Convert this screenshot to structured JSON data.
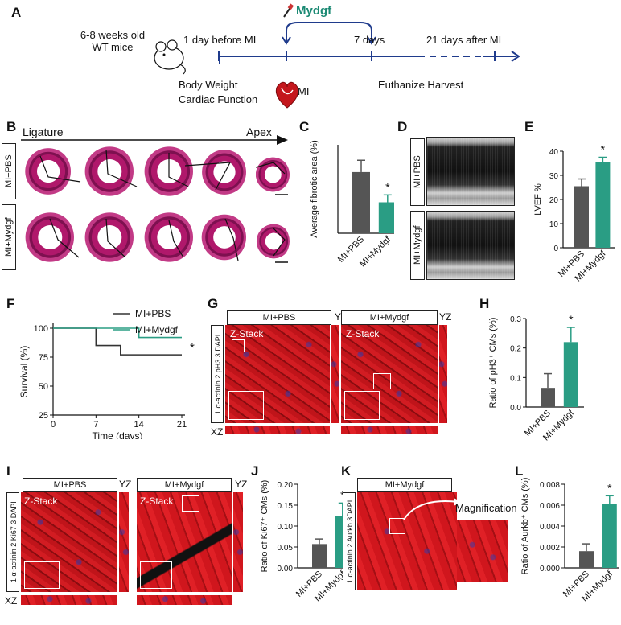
{
  "panels": {
    "A": {
      "letter": "A",
      "mice_line1": "6-8 weeks old",
      "mice_line2": "WT mice",
      "drug": "Mydgf",
      "t1": "1 day before MI",
      "t2": "7 days",
      "t3": "21 days after MI",
      "below1_line1": "Body Weight",
      "below1_line2": "Cardiac Function",
      "mi": "MI",
      "euth": "Euthanize Harvest"
    },
    "B": {
      "letter": "B",
      "ligature": "Ligature",
      "apex": "Apex",
      "row1": "MI+PBS",
      "row2": "MI+Mydgf"
    },
    "C": {
      "letter": "C",
      "ylabel": "Average fibrotic area (%)",
      "star": "*",
      "cat1": "MI+PBS",
      "cat2": "MI+Mydgf"
    },
    "D": {
      "letter": "D",
      "row1": "MI+PBS",
      "row2": "MI+Mydgf"
    },
    "E": {
      "letter": "E",
      "ylabel": "LVEF %",
      "star": "*",
      "ticks": [
        "0",
        "10",
        "20",
        "30",
        "40"
      ],
      "cat1": "MI+PBS",
      "cat2": "MI+Mydgf"
    },
    "F": {
      "letter": "F",
      "legend1": "MI+PBS",
      "legend2": "MI+Mydgf",
      "ylabel": "Survival (%)",
      "xlabel": "Time (days)",
      "yticks": [
        "25",
        "50",
        "75",
        "100"
      ],
      "xticks": [
        "0",
        "7",
        "14",
        "21"
      ],
      "star": "*"
    },
    "G": {
      "letter": "G",
      "title1": "MI+PBS",
      "title2": "MI+Mydgf",
      "yz": "YZ",
      "xz": "XZ",
      "zstack": "Z-Stack",
      "stain": "1 α-actinin 2 pH3 3 DAPI"
    },
    "H": {
      "letter": "H",
      "ylabel": "Ratio of pH3⁺ CMs (%)",
      "ticks": [
        "0.0",
        "0.1",
        "0.2",
        "0.3"
      ],
      "star": "*",
      "cat1": "MI+PBS",
      "cat2": "MI+Mydgf"
    },
    "I": {
      "letter": "I",
      "title1": "MI+PBS",
      "title2": "MI+Mydgf",
      "yz": "YZ",
      "xz": "XZ",
      "zstack": "Z-Stack",
      "stain": "1 α-actinin 2 Ki67 3 DAPI"
    },
    "J": {
      "letter": "J",
      "ylabel": "Ratio of Ki67⁺ CMs (%)",
      "ticks": [
        "0.00",
        "0.05",
        "0.10",
        "0.15",
        "0.20"
      ],
      "star": "*",
      "cat1": "MI+PBS",
      "cat2": "MI+Mydgf"
    },
    "K": {
      "letter": "K",
      "title": "MI+Mydgf",
      "magnification": "Magnification",
      "stain": "1 α-actinin 2 Aurkb 3DAPI"
    },
    "L": {
      "letter": "L",
      "ylabel": "Ratio of Aurkb⁺ CMs (%)",
      "ticks": [
        "0.000",
        "0.002",
        "0.004",
        "0.006",
        "0.008"
      ],
      "star": "*",
      "cat1": "MI+PBS",
      "cat2": "MI+Mydgf"
    }
  },
  "chart_data": [
    {
      "panel": "C",
      "type": "bar",
      "categories": [
        "MI+PBS",
        "MI+Mydgf"
      ],
      "values": [
        83,
        42
      ],
      "errors": [
        16,
        10
      ],
      "ylim": [
        0,
        120
      ],
      "ylabel": "Average fibrotic area (%)",
      "colors": [
        "#555555",
        "#2a9d84"
      ]
    },
    {
      "panel": "E",
      "type": "bar",
      "categories": [
        "MI+PBS",
        "MI+Mydgf"
      ],
      "values": [
        25.5,
        35.5
      ],
      "errors": [
        3,
        2
      ],
      "ylim": [
        0,
        40
      ],
      "ylabel": "LVEF %",
      "colors": [
        "#555555",
        "#2a9d84"
      ]
    },
    {
      "panel": "F",
      "type": "line",
      "xlabel": "Time (days)",
      "ylabel": "Survival (%)",
      "xlim": [
        0,
        21
      ],
      "ylim": [
        25,
        100
      ],
      "series": [
        {
          "name": "MI+PBS",
          "x": [
            0,
            7,
            7,
            11,
            11,
            21
          ],
          "y": [
            100,
            100,
            85,
            85,
            77,
            77
          ],
          "color": "#333333"
        },
        {
          "name": "MI+Mydgf",
          "x": [
            0,
            14,
            14,
            21
          ],
          "y": [
            100,
            100,
            92,
            92
          ],
          "color": "#2a9d84"
        }
      ]
    },
    {
      "panel": "H",
      "type": "bar",
      "categories": [
        "MI+PBS",
        "MI+Mydgf"
      ],
      "values": [
        0.065,
        0.22
      ],
      "errors": [
        0.048,
        0.05
      ],
      "ylim": [
        0,
        0.3
      ],
      "ylabel": "Ratio of pH3⁺ CMs (%)",
      "colors": [
        "#555555",
        "#2a9d84"
      ]
    },
    {
      "panel": "J",
      "type": "bar",
      "categories": [
        "MI+PBS",
        "MI+Mydgf"
      ],
      "values": [
        0.057,
        0.125
      ],
      "errors": [
        0.012,
        0.03
      ],
      "ylim": [
        0,
        0.2
      ],
      "ylabel": "Ratio of Ki67⁺ CMs (%)",
      "colors": [
        "#555555",
        "#2a9d84"
      ]
    },
    {
      "panel": "L",
      "type": "bar",
      "categories": [
        "MI+PBS",
        "MI+Mydgf"
      ],
      "values": [
        0.0016,
        0.0061
      ],
      "errors": [
        0.0007,
        0.0008
      ],
      "ylim": [
        0,
        0.008
      ],
      "ylabel": "Ratio of Aurkb⁺ CMs (%)",
      "colors": [
        "#555555",
        "#2a9d84"
      ]
    }
  ]
}
